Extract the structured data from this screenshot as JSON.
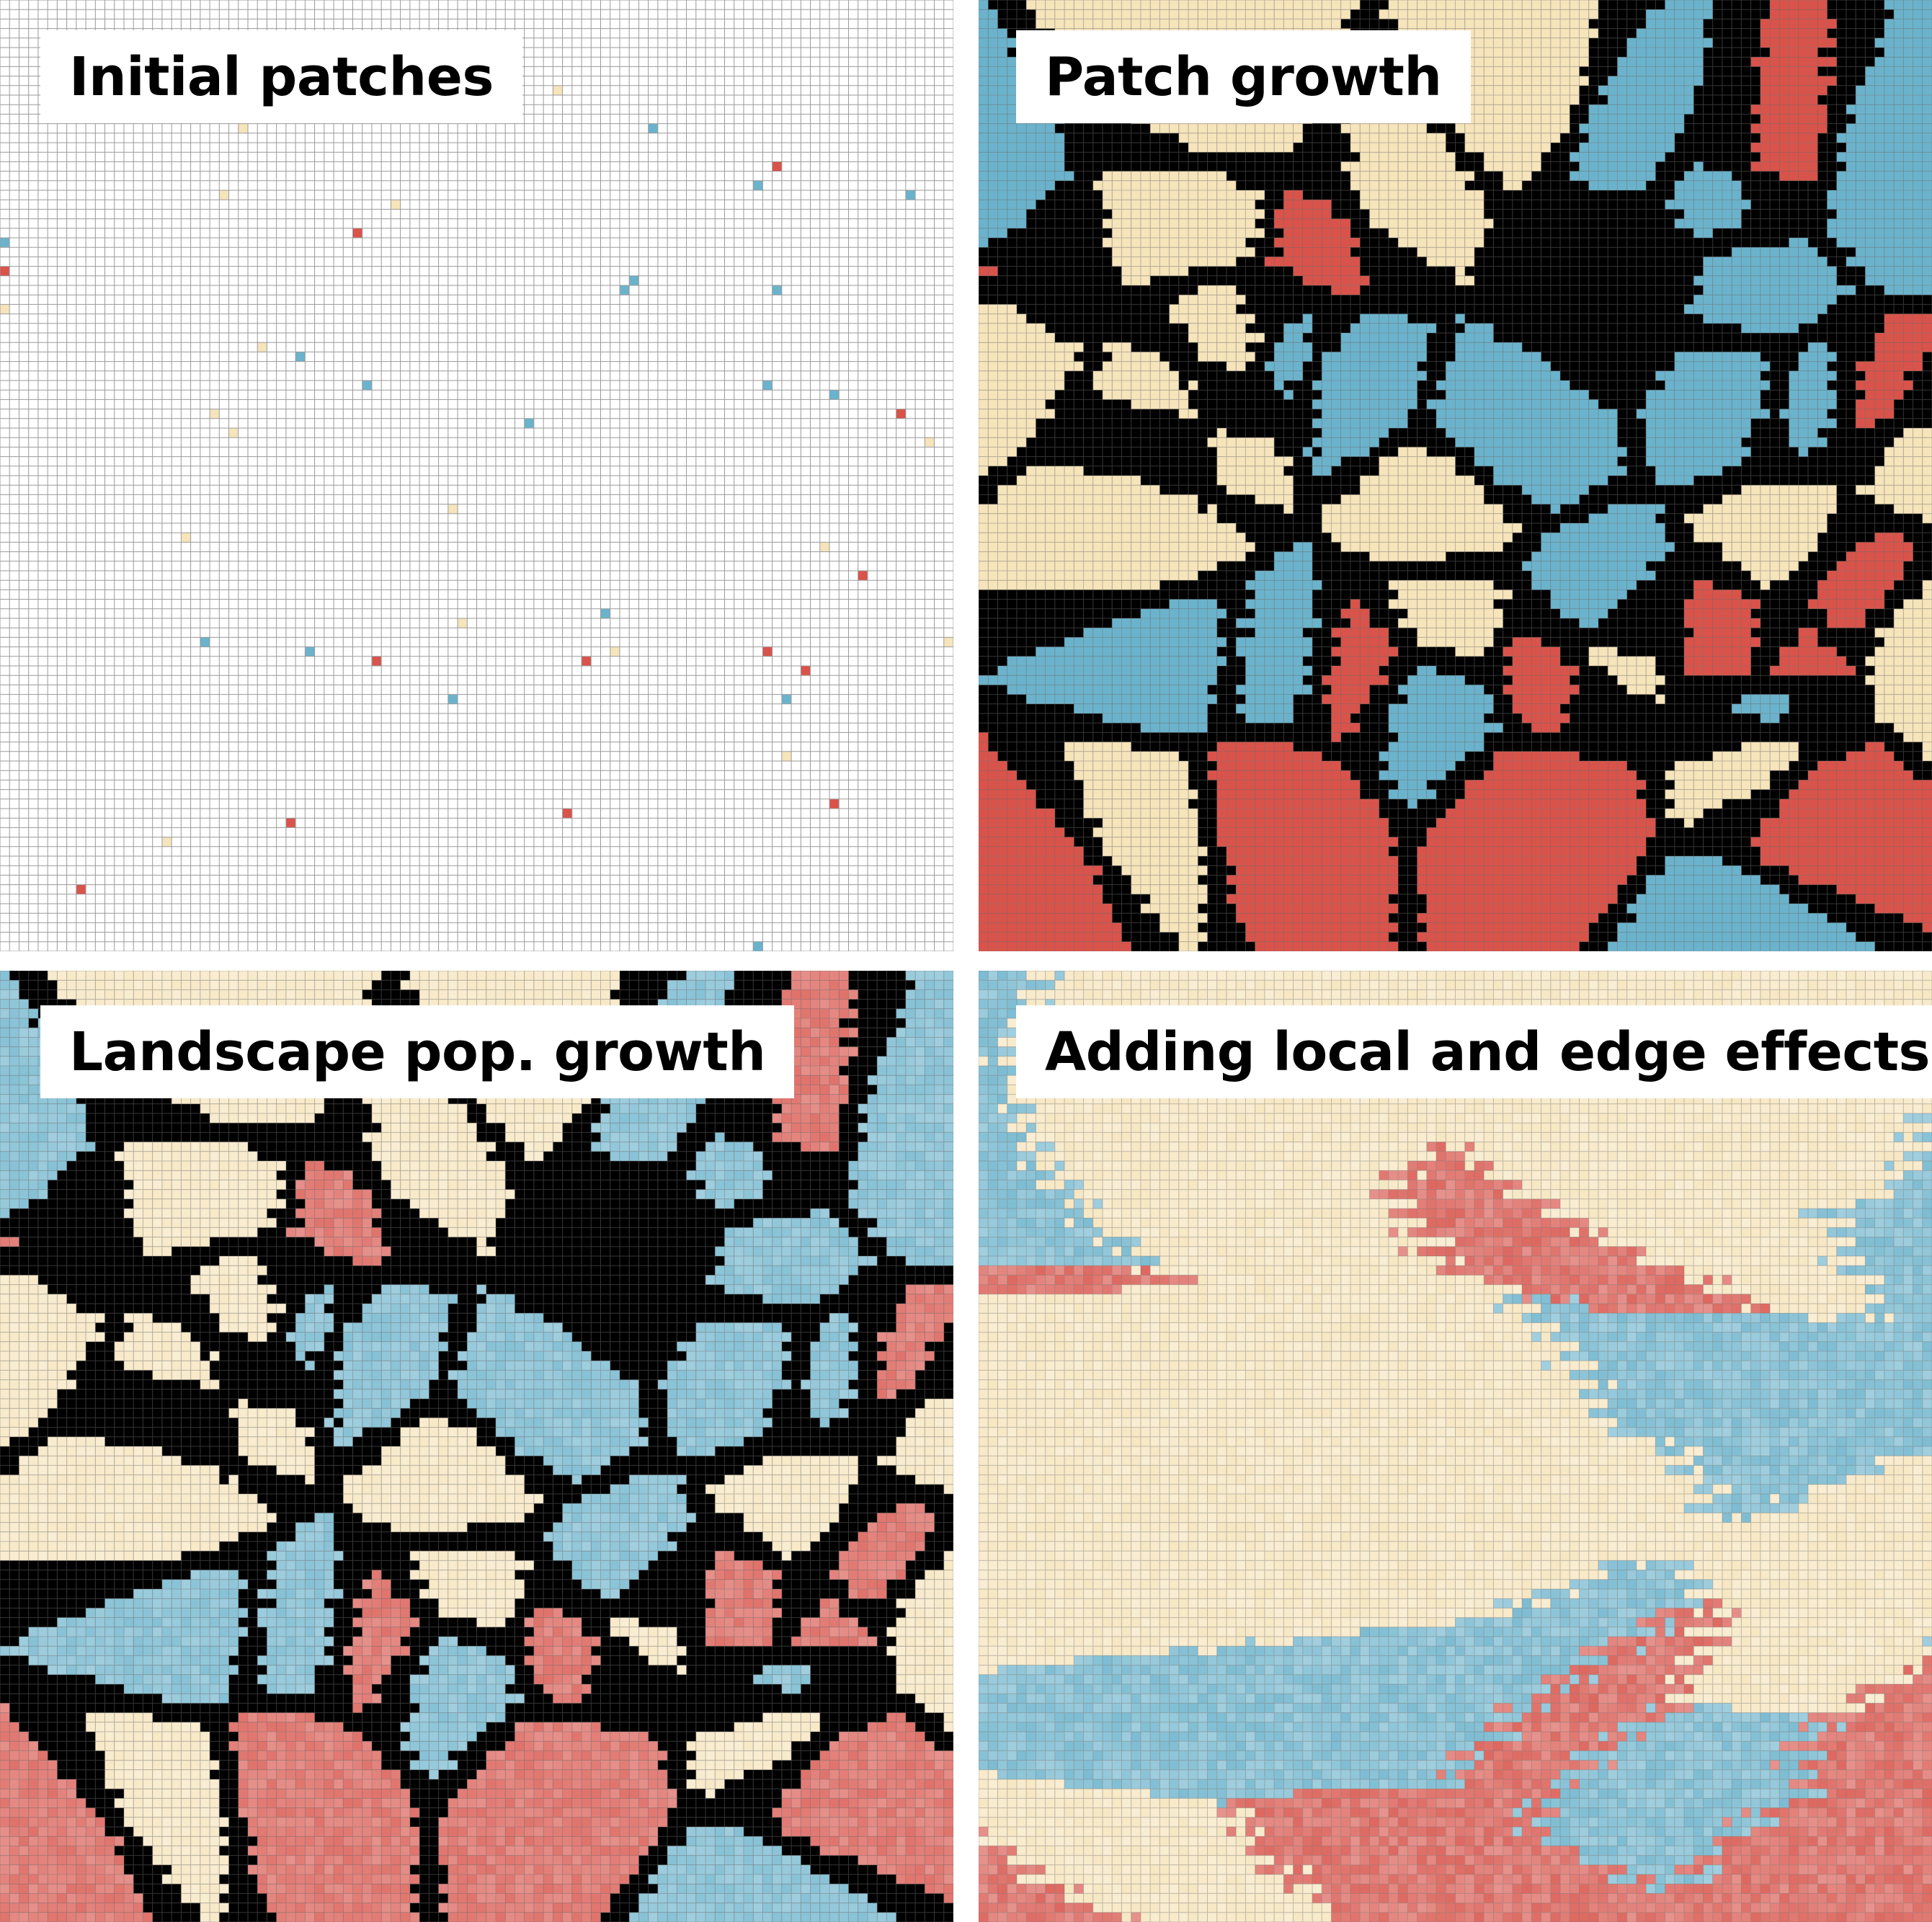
{
  "panels": [
    {
      "title": "Initial patches"
    },
    {
      "title": "Patch growth"
    },
    {
      "title": "Landscape pop. growth"
    },
    {
      "title": "Adding local and edge effects"
    }
  ],
  "colors": {
    "red": "#d9534a",
    "blue": "#6bb3cc",
    "cream": "#f6e4bb",
    "gap": "#000000",
    "gridline": "#9a9a9a",
    "empty": "#ffffff"
  }
}
